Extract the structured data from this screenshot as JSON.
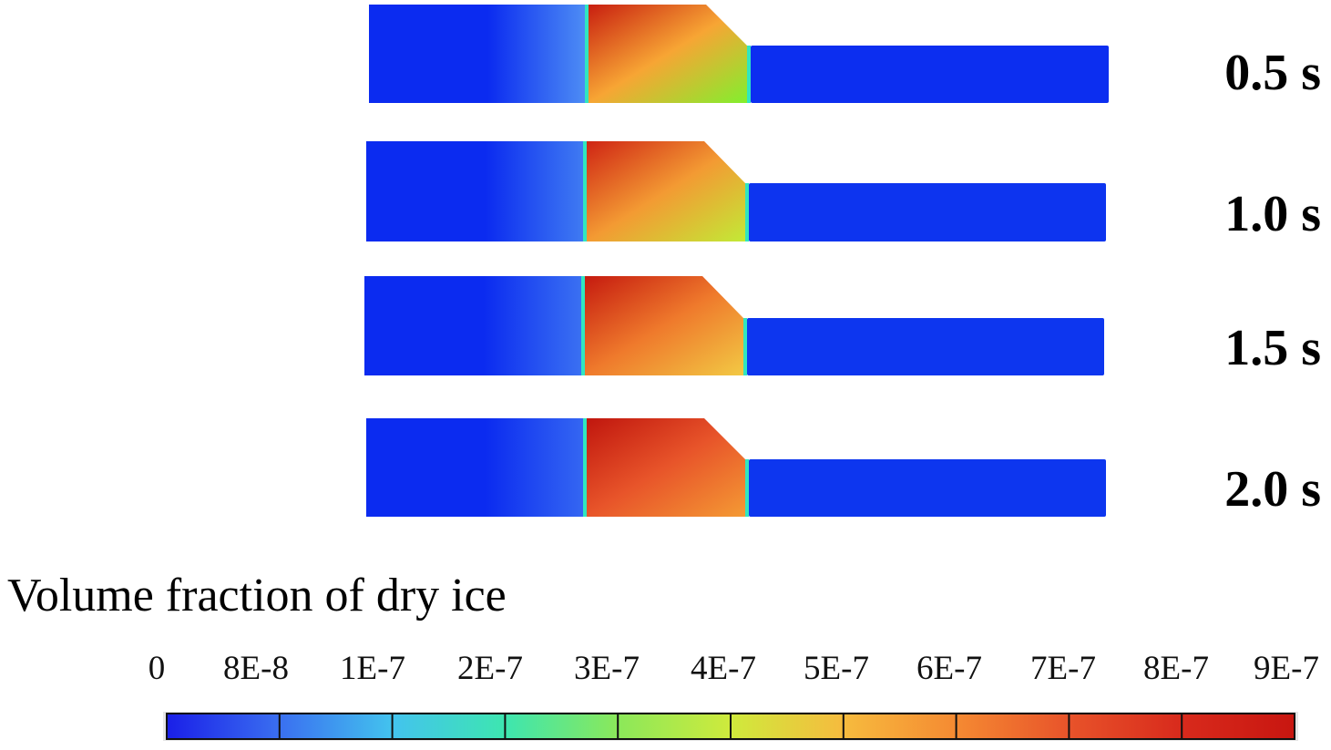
{
  "frames": [
    {
      "time_label": "0.5 s",
      "field": {
        "left": "#0b2bf0",
        "fade": "#4d8cf4",
        "chamber_start": "#c81e10",
        "chamber_mid": "#f7a534",
        "chamber_end": "#82ef2e",
        "interface": "#30e6c0",
        "outlet": "#0c2ef0"
      }
    },
    {
      "time_label": "1.0 s",
      "field": {
        "left": "#0b2bf0",
        "fade": "#3f7af2",
        "chamber_start": "#cf2414",
        "chamber_mid": "#f39a33",
        "chamber_end": "#c2ea36",
        "interface": "#30e6c0",
        "outlet": "#0d34ef"
      }
    },
    {
      "time_label": "1.5 s",
      "field": {
        "left": "#0b2bf0",
        "fade": "#3a70f2",
        "chamber_start": "#c51a0f",
        "chamber_mid": "#ef7a2c",
        "chamber_end": "#f2c944",
        "interface": "#30e6c0",
        "outlet": "#0d36ef"
      }
    },
    {
      "time_label": "2.0 s",
      "field": {
        "left": "#0b2bf0",
        "fade": "#3466f2",
        "chamber_start": "#c0160e",
        "chamber_mid": "#e8552a",
        "chamber_end": "#f49a34",
        "interface": "#30e6c0",
        "outlet": "#0d36ef"
      }
    }
  ],
  "legend": {
    "title": "Volume fraction of dry ice",
    "tick_labels": [
      "0",
      "8E-8",
      "1E-7",
      "2E-7",
      "3E-7",
      "4E-7",
      "5E-7",
      "6E-7",
      "7E-7",
      "8E-7",
      "9E-7"
    ],
    "colors": [
      "#1a1fe8",
      "#3a6ff0",
      "#43c3ee",
      "#3de6b0",
      "#8be85a",
      "#cfea3c",
      "#f6bb3e",
      "#f58a32",
      "#e8532a",
      "#d82a1c",
      "#c81610"
    ]
  }
}
